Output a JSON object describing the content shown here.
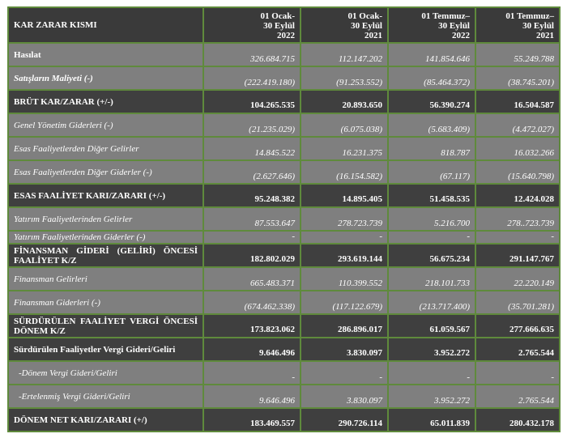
{
  "header": {
    "title": "KAR ZARAR KISMI",
    "columns": [
      [
        "01 Ocak-",
        "30 Eylül",
        "2022"
      ],
      [
        "01 Ocak-",
        "30 Eylül",
        "2021"
      ],
      [
        "01 Temmuz–",
        "30 Eylül",
        "2022"
      ],
      [
        "01 Temmuz–",
        "30 Eylül",
        "2021"
      ]
    ]
  },
  "rows": [
    {
      "label": "Hasılat",
      "values": [
        "326.684.715",
        "112.147.202",
        "141.854.646",
        "55.249.788"
      ]
    },
    {
      "label": "Satışların Maliyeti (-)",
      "values": [
        "(222.419.180)",
        "(91.253.552)",
        "(85.464.372)",
        "(38.745.201)"
      ]
    },
    {
      "label": "BRÜT KAR/ZARAR (+/-)",
      "values": [
        "104.265.535",
        "20.893.650",
        "56.390.274",
        "16.504.587"
      ]
    },
    {
      "label": "Genel Yönetim Giderleri (-)",
      "values": [
        "(21.235.029)",
        "(6.075.038)",
        "(5.683.409)",
        "(4.472.027)"
      ]
    },
    {
      "label": "Esas Faaliyetlerden Diğer Gelirler",
      "values": [
        "14.845.522",
        "16.231.375",
        "818.787",
        "16.032.266"
      ]
    },
    {
      "label": "Esas Faaliyetlerden Diğer Giderler (-)",
      "values": [
        "(2.627.646)",
        "(16.154.582)",
        "(67.117)",
        "(15.640.798)"
      ]
    },
    {
      "label": "ESAS FAALİYET KARI/ZARARI (+/-)",
      "values": [
        "95.248.382",
        "14.895.405",
        "51.458.535",
        "12.424.028"
      ]
    },
    {
      "label": "Yatırım Faaliyetlerinden Gelirler",
      "values": [
        "87.553.647",
        "278.723.739",
        "5.216.700",
        "278..723.739"
      ]
    },
    {
      "label": "Yatırım Faaliyetlerinden Giderler (-)",
      "values": [
        "-",
        "-",
        "-",
        "-"
      ]
    },
    {
      "label": "FİNANSMAN GİDERİ (GELİRİ) ÖNCESİ FAALİYET K/Z",
      "values": [
        "182.802.029",
        "293.619.144",
        "56.675.234",
        "291.147.767"
      ]
    },
    {
      "label": "Finansman Gelirleri",
      "values": [
        "665.483.371",
        "110.399.552",
        "218.101.733",
        "22.220.149"
      ]
    },
    {
      "label": "Finansman Giderleri (-)",
      "values": [
        "(674.462.338)",
        "(117.122.679)",
        "(213.717.400)",
        "(35.701.281)"
      ]
    },
    {
      "label": "SÜRDÜRÜLEN FAALİYET VERGİ ÖNCESİ DÖNEM K/Z",
      "values": [
        "173.823.062",
        "286.896.017",
        "61.059.567",
        "277.666.635"
      ]
    },
    {
      "label": "Sürdürülen Faaliyetler Vergi Gideri/Geliri",
      "values": [
        "9.646.496",
        "3.830.097",
        "3.952.272",
        "2.765.544"
      ]
    },
    {
      "label": "-Dönem Vergi Gideri/Geliri",
      "values": [
        "-",
        "-",
        "-",
        "-"
      ]
    },
    {
      "label": "-Ertelenmiş Vergi Gideri/Geliri",
      "values": [
        "9.646.496",
        "3.830.097",
        "3.952.272",
        "2.765.544"
      ]
    },
    {
      "label": "DÖNEM NET KARI/ZARARI (+/)",
      "values": [
        "183.469.557",
        "290.726.114",
        "65.011.839",
        "280.432.178"
      ]
    }
  ]
}
